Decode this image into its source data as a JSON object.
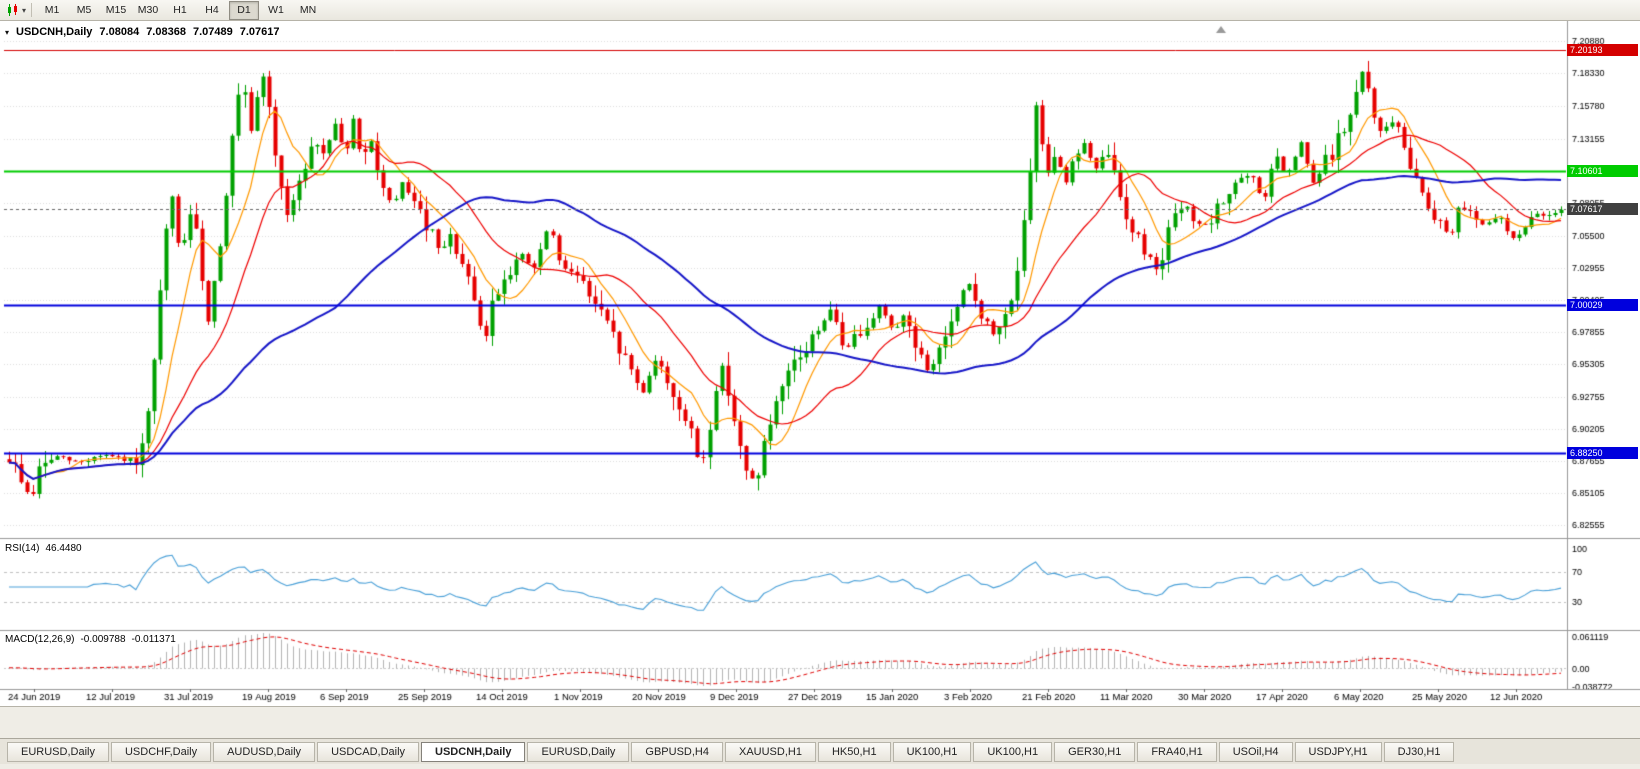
{
  "toolbar": {
    "chart_icon": "candlestick-chart-icon",
    "timeframes": [
      {
        "label": "M1",
        "active": false
      },
      {
        "label": "M5",
        "active": false
      },
      {
        "label": "M15",
        "active": false
      },
      {
        "label": "M30",
        "active": false
      },
      {
        "label": "H1",
        "active": false
      },
      {
        "label": "H4",
        "active": false
      },
      {
        "label": "D1",
        "active": true
      },
      {
        "label": "W1",
        "active": false
      },
      {
        "label": "MN",
        "active": false
      }
    ]
  },
  "chart": {
    "type": "candlestick",
    "symbol": "USDCNH,Daily",
    "ohlc": {
      "open": "7.08084",
      "high": "7.08368",
      "low": "7.07489",
      "close": "7.07617"
    },
    "price_axis": {
      "min": 6.818,
      "max": 7.22,
      "labels": [
        "7.20880",
        "7.18330",
        "7.15780",
        "7.13155",
        "7.10605",
        "7.08055",
        "7.05500",
        "7.02955",
        "7.00405",
        "6.97855",
        "6.95305",
        "6.92755",
        "6.90205",
        "6.87655",
        "6.85105",
        "6.82555"
      ]
    },
    "date_axis": {
      "labels": [
        "24 Jun 2019",
        "12 Jul 2019",
        "31 Jul 2019",
        "19 Aug 2019",
        "6 Sep 2019",
        "25 Sep 2019",
        "14 Oct 2019",
        "1 Nov 2019",
        "20 Nov 2019",
        "9 Dec 2019",
        "27 Dec 2019",
        "15 Jan 2020",
        "3 Feb 2020",
        "21 Feb 2020",
        "11 Mar 2020",
        "30 Mar 2020",
        "17 Apr 2020",
        "6 May 2020",
        "25 May 2020",
        "12 Jun 2020"
      ]
    },
    "hlines": [
      {
        "price": 7.20193,
        "label": "7.20193",
        "color": "#d40000",
        "width": 1
      },
      {
        "price": 7.10601,
        "label": "7.10601",
        "color": "#00cc00",
        "width": 2
      },
      {
        "price": 7.00029,
        "label": "7.00029",
        "color": "#0000dd",
        "width": 2
      },
      {
        "price": 6.8825,
        "label": "6.88250",
        "color": "#0000dd",
        "width": 2
      }
    ],
    "current_price": {
      "price": 7.07617,
      "label": "7.07617",
      "color": "#404040"
    },
    "candles": {
      "count": 258,
      "up_color": "#00a100",
      "down_color": "#e60000",
      "seed": 9
    },
    "moving_averages": [
      {
        "name": "fast-ma",
        "period": 8,
        "color": "#ff9900"
      },
      {
        "name": "mid-ma",
        "period": 20,
        "color": "#ee0000"
      },
      {
        "name": "slow-ma",
        "period": 55,
        "color": "#1616c8"
      }
    ],
    "price_path": [
      [
        0.0,
        6.878
      ],
      [
        0.008,
        6.862
      ],
      [
        0.014,
        6.845
      ],
      [
        0.02,
        6.872
      ],
      [
        0.03,
        6.88
      ],
      [
        0.045,
        6.875
      ],
      [
        0.06,
        6.882
      ],
      [
        0.075,
        6.876
      ],
      [
        0.085,
        6.88
      ],
      [
        0.092,
        6.93
      ],
      [
        0.098,
        7.02
      ],
      [
        0.104,
        7.09
      ],
      [
        0.11,
        7.04
      ],
      [
        0.116,
        7.07
      ],
      [
        0.122,
        7.05
      ],
      [
        0.128,
        6.985
      ],
      [
        0.134,
        7.03
      ],
      [
        0.14,
        7.09
      ],
      [
        0.146,
        7.15
      ],
      [
        0.15,
        7.18
      ],
      [
        0.155,
        7.13
      ],
      [
        0.16,
        7.165
      ],
      [
        0.165,
        7.19
      ],
      [
        0.17,
        7.12
      ],
      [
        0.175,
        7.1
      ],
      [
        0.18,
        7.06
      ],
      [
        0.185,
        7.095
      ],
      [
        0.19,
        7.11
      ],
      [
        0.196,
        7.13
      ],
      [
        0.203,
        7.12
      ],
      [
        0.21,
        7.145
      ],
      [
        0.216,
        7.12
      ],
      [
        0.222,
        7.145
      ],
      [
        0.228,
        7.11
      ],
      [
        0.234,
        7.13
      ],
      [
        0.24,
        7.095
      ],
      [
        0.247,
        7.075
      ],
      [
        0.254,
        7.1
      ],
      [
        0.262,
        7.075
      ],
      [
        0.27,
        7.06
      ],
      [
        0.278,
        7.04
      ],
      [
        0.285,
        7.055
      ],
      [
        0.292,
        7.03
      ],
      [
        0.3,
        7.0
      ],
      [
        0.306,
        6.968
      ],
      [
        0.312,
        7.005
      ],
      [
        0.32,
        7.025
      ],
      [
        0.33,
        7.04
      ],
      [
        0.338,
        7.028
      ],
      [
        0.344,
        7.045
      ],
      [
        0.348,
        7.068
      ],
      [
        0.354,
        7.03
      ],
      [
        0.362,
        7.03
      ],
      [
        0.37,
        7.015
      ],
      [
        0.38,
        6.995
      ],
      [
        0.39,
        6.972
      ],
      [
        0.4,
        6.95
      ],
      [
        0.408,
        6.93
      ],
      [
        0.416,
        6.958
      ],
      [
        0.424,
        6.94
      ],
      [
        0.432,
        6.92
      ],
      [
        0.44,
        6.895
      ],
      [
        0.446,
        6.87
      ],
      [
        0.452,
        6.91
      ],
      [
        0.458,
        6.955
      ],
      [
        0.464,
        6.93
      ],
      [
        0.47,
        6.89
      ],
      [
        0.476,
        6.858
      ],
      [
        0.482,
        6.868
      ],
      [
        0.49,
        6.905
      ],
      [
        0.498,
        6.93
      ],
      [
        0.506,
        6.955
      ],
      [
        0.514,
        6.965
      ],
      [
        0.522,
        6.985
      ],
      [
        0.53,
        6.995
      ],
      [
        0.538,
        6.965
      ],
      [
        0.546,
        6.975
      ],
      [
        0.554,
        6.99
      ],
      [
        0.562,
        7.0
      ],
      [
        0.568,
        6.98
      ],
      [
        0.576,
        6.992
      ],
      [
        0.584,
        6.97
      ],
      [
        0.592,
        6.945
      ],
      [
        0.6,
        6.968
      ],
      [
        0.61,
        6.992
      ],
      [
        0.618,
        7.018
      ],
      [
        0.626,
        6.995
      ],
      [
        0.634,
        6.975
      ],
      [
        0.642,
        6.99
      ],
      [
        0.65,
        7.03
      ],
      [
        0.656,
        7.08
      ],
      [
        0.662,
        7.16
      ],
      [
        0.668,
        7.105
      ],
      [
        0.674,
        7.125
      ],
      [
        0.68,
        7.095
      ],
      [
        0.686,
        7.115
      ],
      [
        0.692,
        7.13
      ],
      [
        0.7,
        7.105
      ],
      [
        0.708,
        7.122
      ],
      [
        0.716,
        7.085
      ],
      [
        0.724,
        7.06
      ],
      [
        0.732,
        7.042
      ],
      [
        0.74,
        7.03
      ],
      [
        0.748,
        7.06
      ],
      [
        0.756,
        7.08
      ],
      [
        0.764,
        7.068
      ],
      [
        0.772,
        7.06
      ],
      [
        0.78,
        7.078
      ],
      [
        0.79,
        7.098
      ],
      [
        0.8,
        7.102
      ],
      [
        0.808,
        7.082
      ],
      [
        0.816,
        7.118
      ],
      [
        0.824,
        7.1
      ],
      [
        0.832,
        7.13
      ],
      [
        0.84,
        7.095
      ],
      [
        0.848,
        7.112
      ],
      [
        0.856,
        7.13
      ],
      [
        0.864,
        7.15
      ],
      [
        0.872,
        7.185
      ],
      [
        0.878,
        7.16
      ],
      [
        0.884,
        7.13
      ],
      [
        0.89,
        7.15
      ],
      [
        0.896,
        7.132
      ],
      [
        0.904,
        7.11
      ],
      [
        0.912,
        7.085
      ],
      [
        0.92,
        7.07
      ],
      [
        0.928,
        7.055
      ],
      [
        0.936,
        7.08
      ],
      [
        0.944,
        7.072
      ],
      [
        0.952,
        7.062
      ],
      [
        0.96,
        7.07
      ],
      [
        0.968,
        7.052
      ],
      [
        0.976,
        7.062
      ],
      [
        0.984,
        7.07
      ],
      [
        1.0,
        7.076
      ]
    ]
  },
  "rsi": {
    "label": "RSI(14)",
    "value": "46.4480",
    "period": 14,
    "levels": [
      "100",
      "70",
      "30"
    ],
    "line_color": "#4aa0d8"
  },
  "macd": {
    "label": "MACD(12,26,9)",
    "value1": "-0.009788",
    "value2": "-0.011371",
    "fast": 12,
    "slow": 26,
    "signal_period": 9,
    "axis_labels": [
      "0.061119",
      "0.00",
      "-0.038772"
    ],
    "hist_color": "#b4b4b4",
    "signal_color": "#e00000"
  },
  "tabs": [
    {
      "label": "EURUSD,Daily",
      "active": false
    },
    {
      "label": "USDCHF,Daily",
      "active": false
    },
    {
      "label": "AUDUSD,Daily",
      "active": false
    },
    {
      "label": "USDCAD,Daily",
      "active": false
    },
    {
      "label": "USDCNH,Daily",
      "active": true
    },
    {
      "label": "EURUSD,Daily",
      "active": false
    },
    {
      "label": "GBPUSD,H4",
      "active": false
    },
    {
      "label": "XAUUSD,H1",
      "active": false
    },
    {
      "label": "HK50,H1",
      "active": false
    },
    {
      "label": "UK100,H1",
      "active": false
    },
    {
      "label": "UK100,H1",
      "active": false
    },
    {
      "label": "GER30,H1",
      "active": false
    },
    {
      "label": "FRA40,H1",
      "active": false
    },
    {
      "label": "USOil,H4",
      "active": false
    },
    {
      "label": "USDJPY,H1",
      "active": false
    },
    {
      "label": "DJ30,H1",
      "active": false
    }
  ]
}
